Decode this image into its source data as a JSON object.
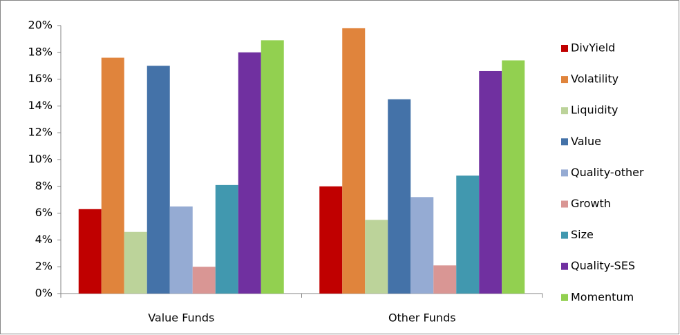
{
  "chart_data": {
    "type": "bar",
    "categories": [
      "Value Funds",
      "Other Funds"
    ],
    "series": [
      {
        "name": "DivYield",
        "color": "#c00000",
        "values": [
          6.3,
          8.0
        ]
      },
      {
        "name": "Volatility",
        "color": "#e0843c",
        "values": [
          17.6,
          19.8
        ]
      },
      {
        "name": "Liquidity",
        "color": "#bcd39a",
        "values": [
          4.6,
          5.5
        ]
      },
      {
        "name": "Value",
        "color": "#4472a8",
        "values": [
          17.0,
          14.5
        ]
      },
      {
        "name": "Quality-other",
        "color": "#95abd3",
        "values": [
          6.5,
          7.2
        ]
      },
      {
        "name": "Growth",
        "color": "#d99694",
        "values": [
          2.0,
          2.1
        ]
      },
      {
        "name": "Size",
        "color": "#4198af",
        "values": [
          8.1,
          8.8
        ]
      },
      {
        "name": "Quality-SES",
        "color": "#7030a0",
        "values": [
          18.0,
          16.6
        ]
      },
      {
        "name": "Momentum",
        "color": "#92d050",
        "values": [
          18.9,
          17.4
        ]
      }
    ],
    "ylim": [
      0,
      20
    ],
    "yticks": [
      {
        "value": 0,
        "label": "0%"
      },
      {
        "value": 2,
        "label": "2%"
      },
      {
        "value": 4,
        "label": "4%"
      },
      {
        "value": 6,
        "label": "6%"
      },
      {
        "value": 8,
        "label": "8%"
      },
      {
        "value": 10,
        "label": "10%"
      },
      {
        "value": 12,
        "label": "12%"
      },
      {
        "value": 14,
        "label": "14%"
      },
      {
        "value": 16,
        "label": "16%"
      },
      {
        "value": 18,
        "label": "18%"
      },
      {
        "value": 20,
        "label": "20%"
      }
    ],
    "grid": false,
    "legend": "right"
  }
}
